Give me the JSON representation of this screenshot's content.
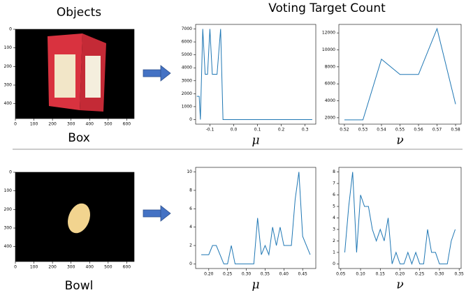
{
  "headings": {
    "objects": "Objects",
    "voting": "Voting Target Count"
  },
  "images": [
    {
      "label": "Box",
      "xlim": [
        0,
        640
      ],
      "ylim": [
        0,
        480
      ],
      "xticks": [
        0,
        100,
        200,
        300,
        400,
        500,
        600
      ],
      "yticks": [
        0,
        100,
        200,
        300,
        400
      ]
    },
    {
      "label": "Bowl",
      "xlim": [
        0,
        640
      ],
      "ylim": [
        0,
        480
      ],
      "xticks": [
        0,
        100,
        200,
        300,
        400,
        500,
        600
      ],
      "yticks": [
        0,
        100,
        200,
        300,
        400
      ]
    }
  ],
  "chart_data": [
    {
      "type": "line",
      "xlabel": "μ",
      "color": "#1f77b4",
      "x": [
        -0.155,
        -0.145,
        -0.14,
        -0.13,
        -0.12,
        -0.11,
        -0.1,
        -0.09,
        -0.07,
        -0.055,
        -0.045,
        0.33
      ],
      "values": [
        1800,
        1800,
        0,
        7000,
        3500,
        3500,
        7000,
        3500,
        3500,
        7000,
        0,
        0
      ],
      "xlim": [
        -0.16,
        0.345
      ],
      "ylim": [
        -350,
        7350
      ],
      "xticks": [
        -0.1,
        {
          "value": 0,
          "label": "0.0"
        },
        0.1,
        0.2,
        0.3
      ],
      "yticks": [
        0,
        1000,
        2000,
        3000,
        4000,
        5000,
        6000,
        7000
      ]
    },
    {
      "type": "line",
      "xlabel": "ν",
      "color": "#1f77b4",
      "x": [
        0.52,
        0.53,
        0.54,
        0.55,
        0.56,
        0.57,
        0.58
      ],
      "values": [
        1750,
        1750,
        8900,
        7100,
        7100,
        12500,
        3600
      ],
      "xlim": [
        0.517,
        0.583
      ],
      "ylim": [
        1250,
        13000
      ],
      "xticks": [
        0.52,
        0.53,
        0.54,
        0.55,
        0.56,
        0.57,
        0.58
      ],
      "yticks": [
        2000,
        4000,
        6000,
        8000,
        10000,
        12000
      ]
    },
    {
      "type": "line",
      "xlabel": "μ",
      "color": "#1f77b4",
      "x": [
        0.18,
        0.19,
        0.2,
        0.21,
        0.22,
        0.23,
        0.24,
        0.25,
        0.26,
        0.27,
        0.28,
        0.29,
        0.3,
        0.31,
        0.32,
        0.33,
        0.34,
        0.35,
        0.36,
        0.37,
        0.38,
        0.39,
        0.4,
        0.41,
        0.42,
        0.43,
        0.44,
        0.45,
        0.46,
        0.47
      ],
      "values": [
        1,
        1,
        1,
        2,
        2,
        1,
        0,
        0,
        2,
        0,
        0,
        0,
        0,
        0,
        0,
        5,
        1,
        2,
        1,
        4,
        2,
        4,
        2,
        2,
        2,
        7,
        10,
        3,
        2,
        1
      ],
      "xlim": [
        0.165,
        0.485
      ],
      "ylim": [
        -0.5,
        10.5
      ],
      "xticks": [
        {
          "value": 0.2,
          "label": "0.20"
        },
        0.25,
        {
          "value": 0.3,
          "label": "0.30"
        },
        0.35,
        {
          "value": 0.4,
          "label": "0.40"
        },
        0.45
      ],
      "yticks": [
        0,
        2,
        4,
        6,
        8,
        10
      ]
    },
    {
      "type": "line",
      "xlabel": "ν",
      "color": "#1f77b4",
      "x": [
        0.06,
        0.07,
        0.08,
        0.09,
        0.1,
        0.11,
        0.12,
        0.13,
        0.14,
        0.15,
        0.16,
        0.17,
        0.18,
        0.19,
        0.2,
        0.21,
        0.22,
        0.23,
        0.24,
        0.25,
        0.26,
        0.27,
        0.28,
        0.29,
        0.3,
        0.31,
        0.32,
        0.33,
        0.34
      ],
      "values": [
        1,
        5,
        8,
        1,
        6,
        5,
        5,
        3,
        2,
        3,
        2,
        4,
        0,
        1,
        0,
        0,
        1,
        0,
        1,
        0,
        0,
        3,
        1,
        1,
        0,
        0,
        0,
        2,
        3
      ],
      "xlim": [
        0.045,
        0.355
      ],
      "ylim": [
        -0.4,
        8.4
      ],
      "xticks": [
        0.05,
        {
          "value": 0.1,
          "label": "0.10"
        },
        0.15,
        {
          "value": 0.2,
          "label": "0.20"
        },
        0.25,
        {
          "value": 0.3,
          "label": "0.30"
        },
        0.35
      ],
      "yticks": [
        0,
        1,
        2,
        3,
        4,
        5,
        6,
        7,
        8
      ]
    }
  ]
}
